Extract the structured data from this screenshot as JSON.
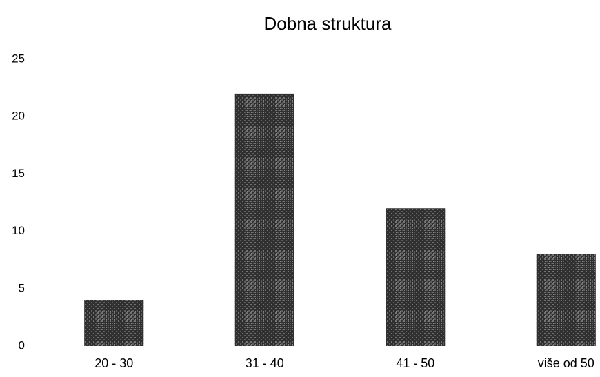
{
  "chart_data": {
    "type": "bar",
    "title": "Dobna struktura",
    "categories": [
      "20 - 30",
      "31 - 40",
      "41 - 50",
      "više od 50"
    ],
    "values": [
      4,
      22,
      12,
      8
    ],
    "color": "#3a3a3a",
    "ylim": [
      0,
      25
    ],
    "yticks": [
      0,
      5,
      10,
      15,
      20,
      25
    ],
    "grid": false
  }
}
